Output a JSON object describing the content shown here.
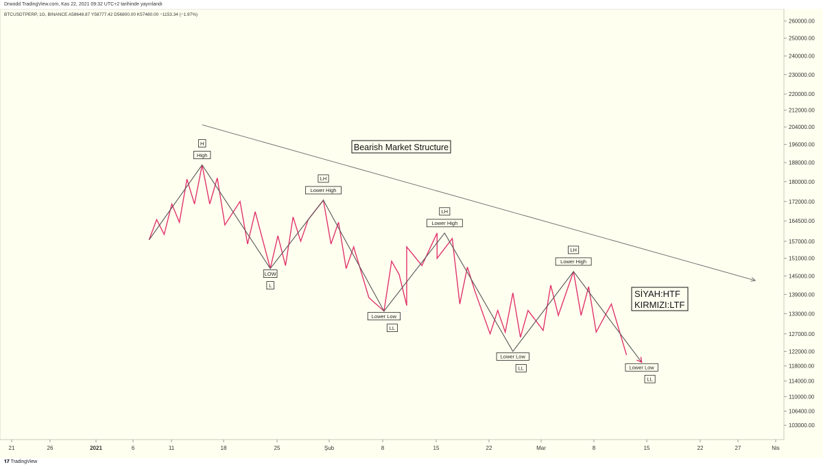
{
  "header": {
    "publish_line": "Drwodd TradingView.com, Kas 22, 2021 09:32 UTC+2 tarihinde yayınlandı",
    "symbol_line": "BTCUSDTPERP, 1G, BINANCE  A58648.87  Y58777.42  D56800.00  K57480.00  −1153.34 (−1.97%)"
  },
  "footer": {
    "brand": "TradingView"
  },
  "colors": {
    "background": "#fffff0",
    "htf_line": "#555555",
    "ltf_line": "#e0336b",
    "trendline": "#787878",
    "axis_text": "#333333",
    "label_border": "#222222"
  },
  "chart_data": {
    "type": "line",
    "title": "Bearish Market Structure",
    "legend": [
      "SİYAH:HTF",
      "KIRMIZI:LTF"
    ],
    "legend_placement": "right",
    "y_axis": {
      "position": "right",
      "scale": "log",
      "ylim": [
        100000,
        264000
      ],
      "ticks": [
        "260000.00",
        "250000.00",
        "240000.00",
        "230000.00",
        "220000.00",
        "212000.00",
        "204000.00",
        "196000.00",
        "188000.00",
        "180000.00",
        "172000.00",
        "164500.00",
        "157000.00",
        "151000.00",
        "145000.00",
        "139000.00",
        "133000.00",
        "127000.00",
        "122000.00",
        "118000.00",
        "114000.00",
        "110000.00",
        "106400.00",
        "103000.00"
      ]
    },
    "x_axis": {
      "ticks": [
        "21",
        "26",
        "2021",
        "6",
        "11",
        "18",
        "25",
        "Şub",
        "8",
        "15",
        "22",
        "Mar",
        "8",
        "15",
        "22",
        "27",
        "Nis"
      ],
      "bold_ticks": [
        "2021"
      ]
    },
    "series": [
      {
        "name": "SİYAH:HTF",
        "values": [
          {
            "x": "2021-01-08",
            "y": 157500
          },
          {
            "x": "2021-01-15",
            "y": 187000
          },
          {
            "x": "2021-01-24",
            "y": 147500
          },
          {
            "x": "2021-01-31",
            "y": 172500
          },
          {
            "x": "2021-02-08",
            "y": 133800
          },
          {
            "x": "2021-02-16",
            "y": 160000
          },
          {
            "x": "2021-02-25",
            "y": 122000
          },
          {
            "x": "2021-03-05",
            "y": 146500
          },
          {
            "x": "2021-03-14",
            "y": 119000
          }
        ]
      },
      {
        "name": "KIRMIZI:LTF",
        "values": [
          {
            "x": "2021-01-08",
            "y": 157500
          },
          {
            "x": "2021-01-09",
            "y": 165000
          },
          {
            "x": "2021-01-10",
            "y": 159500
          },
          {
            "x": "2021-01-11",
            "y": 171000
          },
          {
            "x": "2021-01-12",
            "y": 164000
          },
          {
            "x": "2021-01-13",
            "y": 181000
          },
          {
            "x": "2021-01-14",
            "y": 171000
          },
          {
            "x": "2021-01-15",
            "y": 187000
          },
          {
            "x": "2021-01-16",
            "y": 171000
          },
          {
            "x": "2021-01-17",
            "y": 181500
          },
          {
            "x": "2021-01-18",
            "y": 163000
          },
          {
            "x": "2021-01-20",
            "y": 172000
          },
          {
            "x": "2021-01-21",
            "y": 156000
          },
          {
            "x": "2021-01-22",
            "y": 168000
          },
          {
            "x": "2021-01-24",
            "y": 147500
          },
          {
            "x": "2021-01-25",
            "y": 159000
          },
          {
            "x": "2021-01-26",
            "y": 148500
          },
          {
            "x": "2021-01-27",
            "y": 166000
          },
          {
            "x": "2021-01-28",
            "y": 157000
          },
          {
            "x": "2021-01-29",
            "y": 165000
          },
          {
            "x": "2021-01-31",
            "y": 172500
          },
          {
            "x": "2021-02-01",
            "y": 156000
          },
          {
            "x": "2021-02-02",
            "y": 164000
          },
          {
            "x": "2021-02-03",
            "y": 147500
          },
          {
            "x": "2021-02-04",
            "y": 155000
          },
          {
            "x": "2021-02-06",
            "y": 138000
          },
          {
            "x": "2021-02-08",
            "y": 133800
          },
          {
            "x": "2021-02-09",
            "y": 150000
          },
          {
            "x": "2021-02-10",
            "y": 145500
          },
          {
            "x": "2021-02-11",
            "y": 135500
          },
          {
            "x": "2021-02-11",
            "y": 155000
          },
          {
            "x": "2021-02-13",
            "y": 148500
          },
          {
            "x": "2021-02-15",
            "y": 160000
          },
          {
            "x": "2021-02-15",
            "y": 151000
          },
          {
            "x": "2021-02-17",
            "y": 158000
          },
          {
            "x": "2021-02-18",
            "y": 136000
          },
          {
            "x": "2021-02-19",
            "y": 148000
          },
          {
            "x": "2021-02-20",
            "y": 140000
          },
          {
            "x": "2021-02-22",
            "y": 127000
          },
          {
            "x": "2021-02-23",
            "y": 134000
          },
          {
            "x": "2021-02-24",
            "y": 127500
          },
          {
            "x": "2021-02-25",
            "y": 139500
          },
          {
            "x": "2021-02-26",
            "y": 126000
          },
          {
            "x": "2021-02-27",
            "y": 134000
          },
          {
            "x": "2021-03-01",
            "y": 128000
          },
          {
            "x": "2021-03-02",
            "y": 142000
          },
          {
            "x": "2021-03-03",
            "y": 132500
          },
          {
            "x": "2021-03-05",
            "y": 146500
          },
          {
            "x": "2021-03-06",
            "y": 132500
          },
          {
            "x": "2021-03-07",
            "y": 141500
          },
          {
            "x": "2021-03-08",
            "y": 127500
          },
          {
            "x": "2021-03-10",
            "y": 136000
          },
          {
            "x": "2021-03-12",
            "y": 121000
          }
        ]
      }
    ],
    "trendline": {
      "from": {
        "x": "2021-01-15",
        "y": 205000
      },
      "to": {
        "x": "2021-03-29",
        "y": 143500
      }
    },
    "annotations": [
      {
        "text": "H",
        "x": "2021-01-15",
        "y": 187000,
        "pos": "above2"
      },
      {
        "text": "High",
        "x": "2021-01-15",
        "y": 187000,
        "pos": "above1"
      },
      {
        "text": "LH",
        "x": "2021-01-31",
        "y": 172500,
        "pos": "above2"
      },
      {
        "text": "Lower High",
        "x": "2021-01-31",
        "y": 172500,
        "pos": "above1"
      },
      {
        "text": "LH",
        "x": "2021-02-16",
        "y": 160000,
        "pos": "above2"
      },
      {
        "text": "Lower High",
        "x": "2021-02-16",
        "y": 160000,
        "pos": "above1"
      },
      {
        "text": "LH",
        "x": "2021-03-05",
        "y": 146500,
        "pos": "above2"
      },
      {
        "text": "Lower High",
        "x": "2021-03-05",
        "y": 146500,
        "pos": "above1"
      },
      {
        "text": "LOW",
        "x": "2021-01-24",
        "y": 147500,
        "pos": "below1"
      },
      {
        "text": "L",
        "x": "2021-01-24",
        "y": 147500,
        "pos": "below2"
      },
      {
        "text": "Lower Low",
        "x": "2021-02-08",
        "y": 133800,
        "pos": "below1"
      },
      {
        "text": "LL",
        "x": "2021-02-08",
        "y": 133800,
        "pos": "below2r"
      },
      {
        "text": "Lower Low",
        "x": "2021-02-25",
        "y": 122000,
        "pos": "below1"
      },
      {
        "text": "LL",
        "x": "2021-02-25",
        "y": 122000,
        "pos": "below2r"
      },
      {
        "text": "Lower Low",
        "x": "2021-03-14",
        "y": 119000,
        "pos": "below1"
      },
      {
        "text": "LL",
        "x": "2021-03-14",
        "y": 119000,
        "pos": "below2r"
      }
    ]
  }
}
